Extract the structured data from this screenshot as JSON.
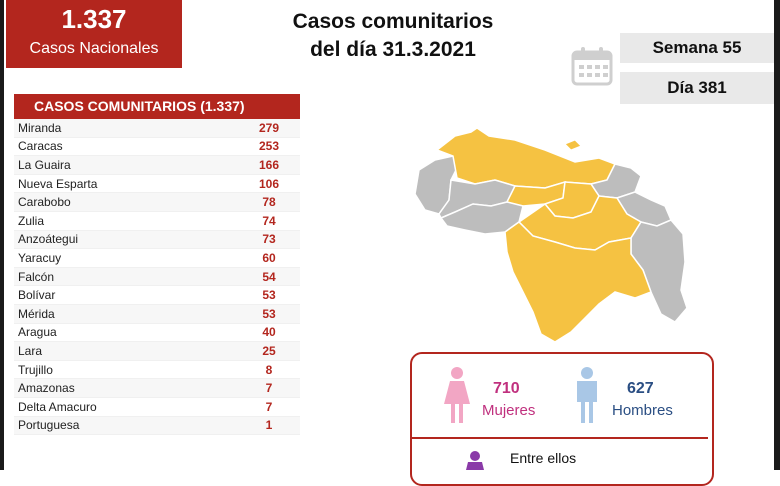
{
  "national": {
    "count": "1.337",
    "label": "Casos Nacionales"
  },
  "title": {
    "line1": "Casos comunitarios",
    "line2": "del día 31.3.2021"
  },
  "week_label": "Semana 55",
  "day_label": "Día 381",
  "table": {
    "header": "CASOS COMUNITARIOS (1.337)",
    "rows": [
      {
        "name": "Miranda",
        "value": "279"
      },
      {
        "name": "Caracas",
        "value": "253"
      },
      {
        "name": "La Guaira",
        "value": "166"
      },
      {
        "name": "Nueva Esparta",
        "value": "106"
      },
      {
        "name": "Carabobo",
        "value": "78"
      },
      {
        "name": "Zulia",
        "value": "74"
      },
      {
        "name": "Anzoátegui",
        "value": "73"
      },
      {
        "name": "Yaracuy",
        "value": "60"
      },
      {
        "name": "Falcón",
        "value": "54"
      },
      {
        "name": "Bolívar",
        "value": "53"
      },
      {
        "name": "Mérida",
        "value": "53"
      },
      {
        "name": "Aragua",
        "value": "40"
      },
      {
        "name": "Lara",
        "value": "25"
      },
      {
        "name": "Trujillo",
        "value": "8"
      },
      {
        "name": "Amazonas",
        "value": "7"
      },
      {
        "name": "Delta Amacuro",
        "value": "7"
      },
      {
        "name": "Portuguesa",
        "value": "1"
      }
    ]
  },
  "gender": {
    "female_count": "710",
    "female_label": "Mujeres",
    "male_count": "627",
    "male_label": "Hombres"
  },
  "between_label": "Entre ellos",
  "colors": {
    "brand_red": "#b3261e",
    "map_yellow": "#f5c242",
    "map_gray": "#bdbdbd",
    "female_pink": "#f2a6c4",
    "male_blue": "#a9c7e6",
    "purple": "#8a3aa8"
  },
  "icons": [
    "calendar-icon",
    "female-icon",
    "male-icon",
    "person-icon"
  ]
}
